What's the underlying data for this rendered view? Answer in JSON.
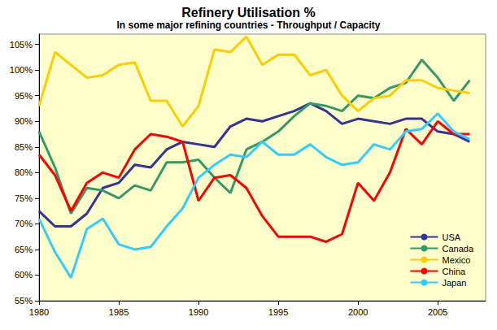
{
  "chart_data": {
    "type": "line",
    "title": "Refinery Utilisation %",
    "subtitle": "In some major refining countries - Throughput / Capacity",
    "x": [
      1980,
      1981,
      1982,
      1983,
      1984,
      1985,
      1986,
      1987,
      1988,
      1989,
      1990,
      1991,
      1992,
      1993,
      1994,
      1995,
      1996,
      1997,
      1998,
      1999,
      2000,
      2001,
      2002,
      2003,
      2004,
      2005,
      2006,
      2007
    ],
    "series": [
      {
        "name": "USA",
        "color": "#333399",
        "values": [
          72.5,
          69.5,
          69.5,
          72,
          77,
          78,
          81.5,
          81,
          84.5,
          86,
          85.5,
          85,
          89,
          90.5,
          90,
          91,
          92,
          93.5,
          92,
          89.5,
          90.5,
          90,
          89.5,
          90.5,
          90.5,
          88,
          87.5,
          86
        ]
      },
      {
        "name": "Canada",
        "color": "#339966",
        "values": [
          88,
          81,
          72,
          77,
          76.5,
          75,
          77.5,
          76.5,
          82,
          82,
          82.5,
          79,
          76,
          84.5,
          86,
          88,
          91,
          93.5,
          93,
          92,
          95,
          94.5,
          96.5,
          97.5,
          102,
          98.5,
          94,
          98
        ]
      },
      {
        "name": "Mexico",
        "color": "#ffcc00",
        "values": [
          93,
          103.5,
          101,
          98.5,
          99,
          101,
          101.5,
          94,
          94,
          89,
          93,
          104,
          103.5,
          106.5,
          101,
          103,
          103,
          99,
          100,
          95,
          92,
          94.5,
          95,
          98,
          98,
          96.5,
          96,
          95.5
        ]
      },
      {
        "name": "China",
        "color": "#ff0000",
        "values": [
          83.5,
          79.5,
          72.5,
          78,
          80,
          79,
          84.5,
          87.5,
          87,
          86,
          74.5,
          79,
          79.5,
          77,
          71.5,
          67.5,
          67.5,
          67.5,
          66.5,
          68,
          78,
          74.5,
          80,
          88.5,
          85.5,
          90,
          87.5,
          87.5
        ]
      },
      {
        "name": "Japan",
        "color": "#33ccff",
        "values": [
          71,
          64.5,
          59.5,
          69,
          71,
          66,
          65,
          65.5,
          69.5,
          73,
          79,
          81.5,
          83.5,
          83,
          86,
          83.5,
          83.5,
          85.5,
          83,
          81.5,
          82,
          85.5,
          84.5,
          88,
          88.5,
          91.5,
          88,
          86.5
        ]
      }
    ],
    "xlim": [
      1980,
      2008
    ],
    "xticks": [
      1980,
      1985,
      1990,
      1995,
      2000,
      2005
    ],
    "ylim": [
      55,
      107
    ],
    "yticks": [
      {
        "value": 55,
        "label": "55%"
      },
      {
        "value": 60,
        "label": "60%"
      },
      {
        "value": 65,
        "label": "65%"
      },
      {
        "value": 70,
        "label": "70%"
      },
      {
        "value": 75,
        "label": "75%"
      },
      {
        "value": 80,
        "label": "80%"
      },
      {
        "value": 85,
        "label": "85%"
      },
      {
        "value": 90,
        "label": "90%"
      },
      {
        "value": 95,
        "label": "95%"
      },
      {
        "value": 100,
        "label": "100%"
      },
      {
        "value": 105,
        "label": "105%"
      }
    ],
    "grid": false,
    "legend": "lower right"
  }
}
